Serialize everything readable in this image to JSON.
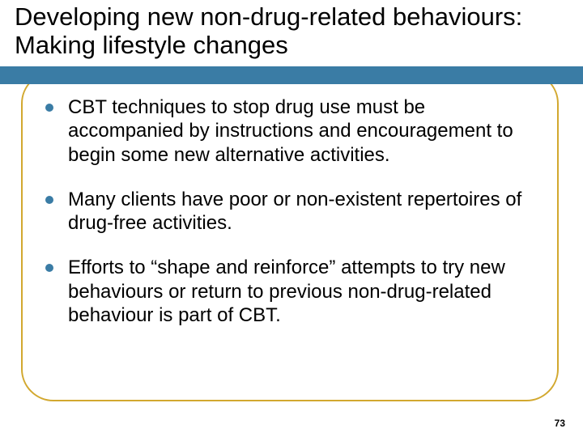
{
  "title": "Developing new non-drug-related behaviours:  Making lifestyle changes",
  "bullets": [
    "CBT techniques to stop drug use must be accompanied by instructions and encouragement to begin some new alternative activities.",
    "Many clients have poor or non-existent repertoires of drug-free activities.",
    "Efforts to “shape and reinforce” attempts to try new behaviours or return to previous non-drug-related behaviour is part of CBT."
  ],
  "page_number": "73",
  "colors": {
    "bar": "#3a7ca5",
    "bullet": "#3a7ca5",
    "border": "#d2a82f",
    "text": "#000000",
    "background": "#ffffff"
  }
}
